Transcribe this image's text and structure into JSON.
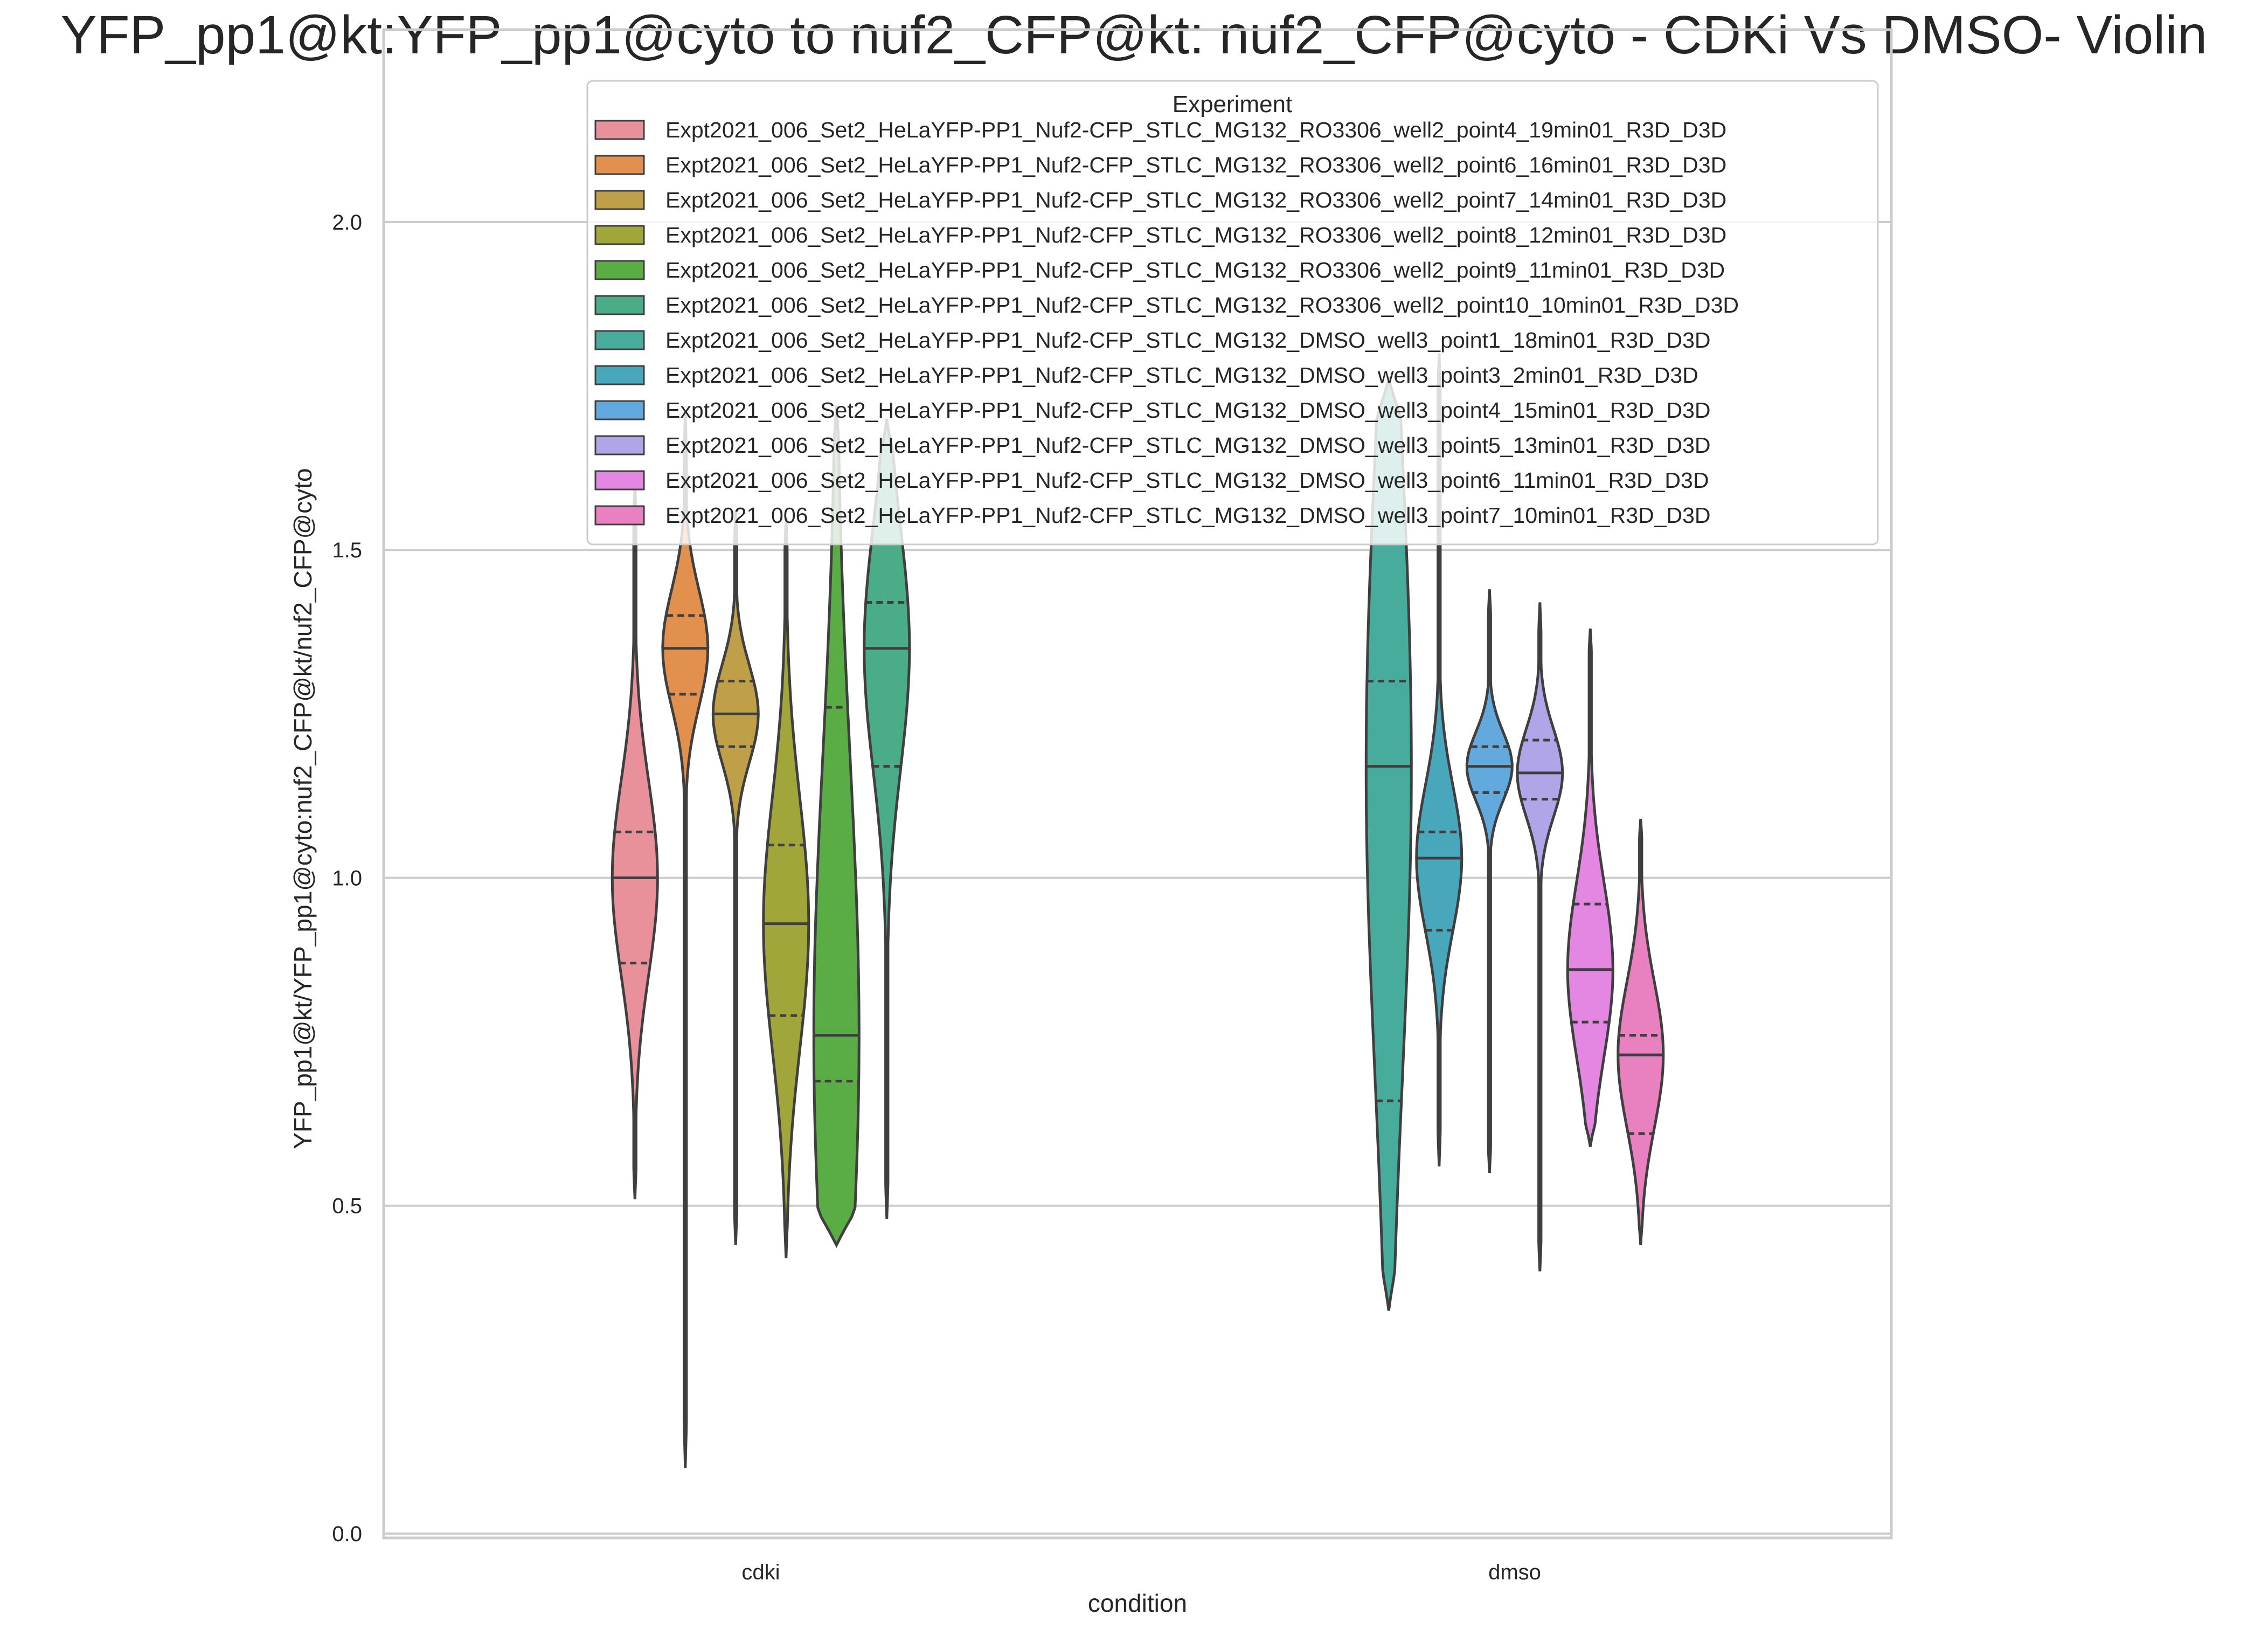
{
  "chart_data": {
    "type": "violin",
    "title": "YFP_pp1@kt:YFP_pp1@cyto to nuf2_CFP@kt: nuf2_CFP@cyto - CDKi Vs DMSO- Violin",
    "xlabel": "condition",
    "ylabel": "YFP_pp1@kt/YFP_pp1@cyto:nuf2_CFP@kt/nuf2_CFP@cyto",
    "ylim": [
      0.0,
      2.3
    ],
    "yticks": [
      "0.0",
      "0.5",
      "1.0",
      "1.5",
      "2.0"
    ],
    "grid": true,
    "categories": [
      "cdki",
      "dmso"
    ],
    "legend": {
      "title": "Experiment",
      "placement": "top-right"
    },
    "series": [
      {
        "name": "Expt2021_006_Set2_HeLaYFP-PP1_Nuf2-CFP_STLC_MG132_RO3306_well2_point4_19min01_R3D_D3D",
        "condition": "cdki",
        "color": "#e8919b",
        "min": 0.51,
        "max": 1.6,
        "q1": 0.87,
        "median": 1.0,
        "q3": 1.07
      },
      {
        "name": "Expt2021_006_Set2_HeLaYFP-PP1_Nuf2-CFP_STLC_MG132_RO3306_well2_point6_16min01_R3D_D3D",
        "condition": "cdki",
        "color": "#e2904e",
        "min": 0.1,
        "max": 1.71,
        "q1": 1.28,
        "median": 1.35,
        "q3": 1.4
      },
      {
        "name": "Expt2021_006_Set2_HeLaYFP-PP1_Nuf2-CFP_STLC_MG132_RO3306_well2_point7_14min01_R3D_D3D",
        "condition": "cdki",
        "color": "#bfa049",
        "min": 0.44,
        "max": 1.56,
        "q1": 1.2,
        "median": 1.25,
        "q3": 1.3
      },
      {
        "name": "Expt2021_006_Set2_HeLaYFP-PP1_Nuf2-CFP_STLC_MG132_RO3306_well2_point8_12min01_R3D_D3D",
        "condition": "cdki",
        "color": "#a1a63b",
        "min": 0.42,
        "max": 1.55,
        "q1": 0.79,
        "median": 0.93,
        "q3": 1.05
      },
      {
        "name": "Expt2021_006_Set2_HeLaYFP-PP1_Nuf2-CFP_STLC_MG132_RO3306_well2_point9_11min01_R3D_D3D",
        "condition": "cdki",
        "color": "#5aac44",
        "min": 0.44,
        "max": 1.72,
        "q1": 0.69,
        "median": 0.76,
        "q3": 1.26
      },
      {
        "name": "Expt2021_006_Set2_HeLaYFP-PP1_Nuf2-CFP_STLC_MG132_RO3306_well2_point10_10min01_R3D_D3D",
        "condition": "cdki",
        "color": "#4bad88",
        "min": 0.48,
        "max": 1.7,
        "q1": 1.17,
        "median": 1.35,
        "q3": 1.42
      },
      {
        "name": "Expt2021_006_Set2_HeLaYFP-PP1_Nuf2-CFP_STLC_MG132_DMSO_well3_point1_18min01_R3D_D3D",
        "condition": "dmso",
        "color": "#47ac9b",
        "min": 0.34,
        "max": 1.76,
        "q1": 0.66,
        "median": 1.17,
        "q3": 1.3
      },
      {
        "name": "Expt2021_006_Set2_HeLaYFP-PP1_Nuf2-CFP_STLC_MG132_DMSO_well3_point3_2min01_R3D_D3D",
        "condition": "dmso",
        "color": "#49a7bb",
        "min": 0.56,
        "max": 1.8,
        "q1": 0.92,
        "median": 1.03,
        "q3": 1.07
      },
      {
        "name": "Expt2021_006_Set2_HeLaYFP-PP1_Nuf2-CFP_STLC_MG132_DMSO_well3_point4_15min01_R3D_D3D",
        "condition": "dmso",
        "color": "#62a9dd",
        "min": 0.55,
        "max": 1.44,
        "q1": 1.13,
        "median": 1.17,
        "q3": 1.2
      },
      {
        "name": "Expt2021_006_Set2_HeLaYFP-PP1_Nuf2-CFP_STLC_MG132_DMSO_well3_point5_13min01_R3D_D3D",
        "condition": "dmso",
        "color": "#b0a5e7",
        "min": 0.4,
        "max": 1.42,
        "q1": 1.12,
        "median": 1.16,
        "q3": 1.21
      },
      {
        "name": "Expt2021_006_Set2_HeLaYFP-PP1_Nuf2-CFP_STLC_MG132_DMSO_well3_point6_11min01_R3D_D3D",
        "condition": "dmso",
        "color": "#e387e3",
        "min": 0.59,
        "max": 1.38,
        "q1": 0.78,
        "median": 0.86,
        "q3": 0.96
      },
      {
        "name": "Expt2021_006_Set2_HeLaYFP-PP1_Nuf2-CFP_STLC_MG132_DMSO_well3_point7_10min01_R3D_D3D",
        "condition": "dmso",
        "color": "#e981c0",
        "min": 0.44,
        "max": 1.09,
        "q1": 0.61,
        "median": 0.73,
        "q3": 0.76
      }
    ]
  }
}
